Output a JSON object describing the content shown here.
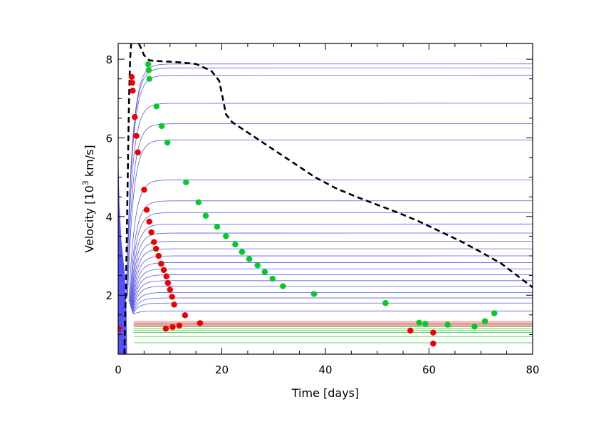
{
  "chart_data": {
    "type": "line",
    "title": "",
    "xlabel": "Time [days]",
    "ylabel_parts": {
      "before": "Velocity [10",
      "sup": "3",
      "after": " km/s]"
    },
    "xlim": [
      0,
      80
    ],
    "ylim": [
      0.5,
      8.4
    ],
    "x_ticks": [
      0,
      20,
      40,
      60,
      80
    ],
    "x_minor_step": 5,
    "y_ticks": [
      2,
      4,
      6,
      8
    ],
    "y_minor_step": 0.5,
    "grid": false,
    "legend": "none",
    "colors": {
      "blue_lines": "#5a5ae6",
      "red_lines": "#e67a7a",
      "green_lines": "#33c033",
      "red_points": "#ee0000",
      "green_points": "#00cc22",
      "photosphere": "#000000",
      "blue_fill": "#3333ff"
    },
    "series": [
      {
        "kind": "dashed-curve",
        "points": [
          [
            1.2,
            0.5
          ],
          [
            1.3,
            1.2
          ],
          [
            1.5,
            2.2
          ],
          [
            1.7,
            3.8
          ],
          [
            1.9,
            5.5
          ],
          [
            2.1,
            7.0
          ],
          [
            2.3,
            8.0
          ],
          [
            2.5,
            8.4
          ]
        ]
      },
      {
        "kind": "dashed-curve",
        "points": [
          [
            4.0,
            8.4
          ],
          [
            5.0,
            8.1
          ],
          [
            6.0,
            7.97
          ],
          [
            8,
            7.95
          ],
          [
            11,
            7.93
          ],
          [
            15,
            7.88
          ],
          [
            18,
            7.7
          ],
          [
            19.5,
            7.45
          ],
          [
            20.2,
            7.0
          ],
          [
            20.8,
            6.6
          ],
          [
            22,
            6.4
          ],
          [
            26,
            6.05
          ],
          [
            30,
            5.7
          ],
          [
            34,
            5.35
          ],
          [
            38,
            5.0
          ],
          [
            42,
            4.72
          ],
          [
            46,
            4.5
          ],
          [
            50,
            4.3
          ],
          [
            54,
            4.1
          ],
          [
            58,
            3.88
          ],
          [
            62,
            3.63
          ],
          [
            66,
            3.38
          ],
          [
            70,
            3.1
          ],
          [
            74,
            2.8
          ],
          [
            77,
            2.5
          ],
          [
            80,
            2.2
          ]
        ]
      },
      {
        "kind": "green-points",
        "points": [
          [
            5.8,
            7.87
          ],
          [
            5.9,
            7.72
          ],
          [
            6.0,
            7.5
          ],
          [
            7.4,
            6.8
          ],
          [
            8.4,
            6.3
          ],
          [
            9.5,
            5.88
          ],
          [
            13.1,
            4.87
          ],
          [
            15.5,
            4.36
          ],
          [
            16.9,
            4.02
          ],
          [
            19.1,
            3.74
          ],
          [
            20.8,
            3.5
          ],
          [
            22.6,
            3.29
          ],
          [
            23.9,
            3.1
          ],
          [
            25.3,
            2.92
          ],
          [
            26.9,
            2.76
          ],
          [
            28.3,
            2.59
          ],
          [
            29.8,
            2.42
          ],
          [
            31.8,
            2.23
          ],
          [
            37.8,
            2.03
          ],
          [
            51.6,
            1.8
          ],
          [
            58.1,
            1.3
          ],
          [
            59.3,
            1.27
          ],
          [
            63.6,
            1.25
          ],
          [
            68.8,
            1.2
          ],
          [
            70.8,
            1.34
          ],
          [
            72.6,
            1.54
          ]
        ]
      },
      {
        "kind": "red-points",
        "points": [
          [
            2.6,
            7.55
          ],
          [
            2.7,
            7.4
          ],
          [
            2.8,
            7.2
          ],
          [
            3.2,
            6.53
          ],
          [
            3.5,
            6.05
          ],
          [
            3.8,
            5.63
          ],
          [
            5.0,
            4.68
          ],
          [
            5.5,
            4.17
          ],
          [
            6.0,
            3.87
          ],
          [
            6.4,
            3.6
          ],
          [
            6.9,
            3.35
          ],
          [
            7.3,
            3.18
          ],
          [
            7.8,
            3.0
          ],
          [
            8.3,
            2.8
          ],
          [
            8.8,
            2.64
          ],
          [
            9.3,
            2.48
          ],
          [
            9.6,
            2.31
          ],
          [
            10.0,
            2.14
          ],
          [
            10.4,
            1.96
          ],
          [
            10.8,
            1.76
          ],
          [
            12.9,
            1.49
          ],
          [
            15.8,
            1.29
          ],
          [
            11.8,
            1.23
          ],
          [
            10.5,
            1.19
          ],
          [
            9.2,
            1.15
          ],
          [
            56.4,
            1.1
          ],
          [
            60.8,
            1.05
          ],
          [
            60.8,
            0.77
          ],
          [
            0.1,
            1.15
          ]
        ]
      },
      {
        "kind": "blue-model-lines",
        "levels": [
          7.88,
          7.78,
          7.59,
          6.88,
          6.36,
          5.95,
          4.93,
          4.4,
          4.1,
          3.81,
          3.58,
          3.37,
          3.18,
          3.0,
          2.83,
          2.67,
          2.52,
          2.37,
          2.23,
          2.07,
          1.93,
          1.8,
          1.6
        ]
      },
      {
        "kind": "red-model-lines",
        "levels": [
          1.33,
          1.3,
          1.28,
          1.26,
          1.24,
          1.22
        ]
      },
      {
        "kind": "green-model-lines",
        "levels": [
          1.2,
          1.15,
          1.1,
          1.05,
          0.95,
          0.79
        ]
      }
    ]
  }
}
